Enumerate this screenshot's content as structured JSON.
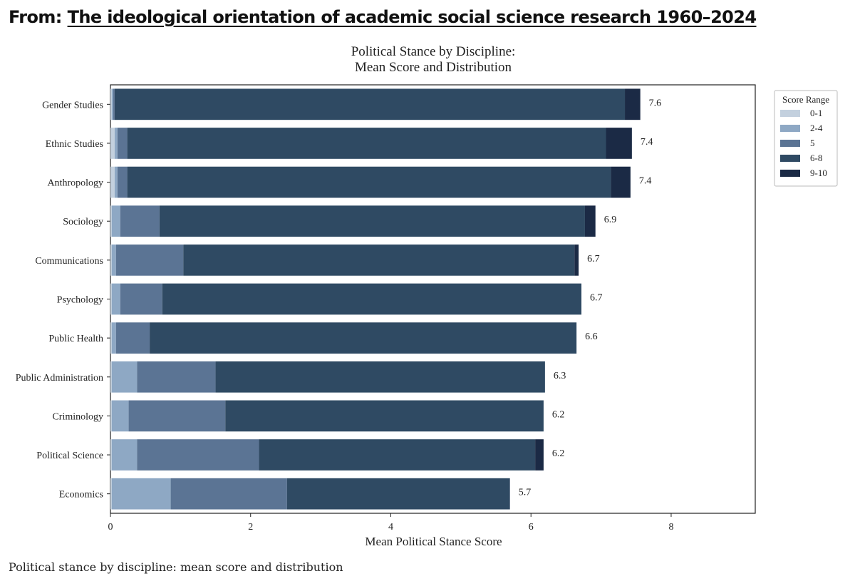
{
  "header": {
    "prefix": "From:",
    "link_text": "The ideological orientation of academic social science research 1960–2024"
  },
  "caption": "Political stance by discipline: mean score and distribution",
  "chart_data": {
    "type": "bar",
    "orientation": "horizontal",
    "stacked": true,
    "title_line1": "Political Stance by Discipline:",
    "title_line2": "Mean Score and Distribution",
    "xlabel": "Mean Political Stance Score",
    "ylabel": "",
    "xlim": [
      0,
      9.2
    ],
    "xticks": [
      0,
      2,
      4,
      6,
      8
    ],
    "legend": {
      "title": "Score Range",
      "position": "outside-top-right"
    },
    "categories": [
      "Gender Studies",
      "Ethnic Studies",
      "Anthropology",
      "Sociology",
      "Communications",
      "Psychology",
      "Public Health",
      "Public Administration",
      "Criminology",
      "Political Science",
      "Economics"
    ],
    "mean_labels": [
      "7.6",
      "7.4",
      "7.4",
      "6.9",
      "6.7",
      "6.7",
      "6.6",
      "6.3",
      "6.2",
      "6.2",
      "5.7"
    ],
    "series": [
      {
        "name": "0-1",
        "color": "#c3d0de",
        "values": [
          0.02,
          0.06,
          0.06,
          0.02,
          0.02,
          0.02,
          0.02,
          0.02,
          0.02,
          0.02,
          0.02
        ]
      },
      {
        "name": "2-4",
        "color": "#8ea8c4",
        "values": [
          0.02,
          0.04,
          0.04,
          0.12,
          0.06,
          0.12,
          0.06,
          0.36,
          0.24,
          0.36,
          0.84
        ]
      },
      {
        "name": "5",
        "color": "#5b7494",
        "values": [
          0.02,
          0.14,
          0.14,
          0.56,
          0.96,
          0.6,
          0.48,
          1.12,
          1.38,
          1.74,
          1.66
        ]
      },
      {
        "name": "6-8",
        "color": "#2f4a63",
        "values": [
          7.28,
          6.83,
          6.9,
          6.07,
          5.58,
          5.98,
          6.09,
          4.7,
          4.54,
          3.94,
          3.18
        ]
      },
      {
        "name": "9-10",
        "color": "#1b2a45",
        "values": [
          0.22,
          0.37,
          0.28,
          0.15,
          0.06,
          0.0,
          0.0,
          0.0,
          0.0,
          0.12,
          0.0
        ]
      }
    ]
  }
}
